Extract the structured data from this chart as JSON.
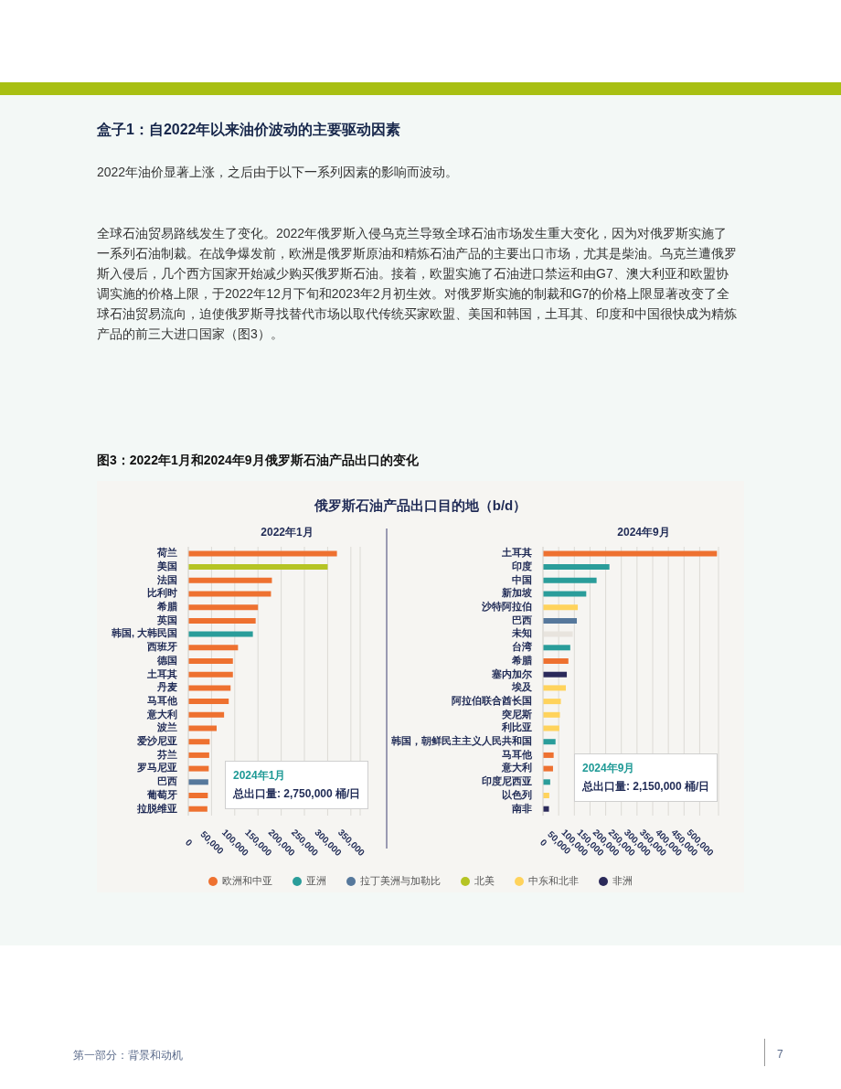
{
  "chart_data": [
    {
      "type": "bar",
      "orientation": "horizontal",
      "stacked": true,
      "title": "俄罗斯石油产品出口目的地（b/d）",
      "subtitle": "2022年1月",
      "categories": [
        "荷兰",
        "美国",
        "法国",
        "比利时",
        "希腊",
        "英国",
        "韩国, 大韩民国",
        "西班牙",
        "德国",
        "土耳其",
        "丹麦",
        "马耳他",
        "意大利",
        "波兰",
        "爱沙尼亚",
        "芬兰",
        "罗马尼亚",
        "巴西",
        "葡萄牙",
        "拉脱维亚"
      ],
      "series": [
        {
          "name": "欧洲和中亚",
          "color": "#ee7130",
          "values": [
            320000,
            null,
            180000,
            178000,
            150000,
            145000,
            null,
            107000,
            96000,
            96000,
            91000,
            87000,
            77000,
            61000,
            46000,
            45000,
            44000,
            null,
            42000,
            41000
          ]
        },
        {
          "name": "亚洲",
          "color": "#2a9d9a",
          "values": [
            null,
            null,
            null,
            null,
            null,
            null,
            139000,
            null,
            null,
            null,
            null,
            null,
            null,
            null,
            null,
            null,
            null,
            null,
            null,
            null
          ]
        },
        {
          "name": "拉丁美洲与加勒比",
          "color": "#56789c",
          "values": [
            null,
            null,
            null,
            null,
            null,
            null,
            null,
            null,
            null,
            null,
            null,
            null,
            null,
            null,
            null,
            null,
            null,
            43000,
            null,
            null
          ]
        },
        {
          "name": "北美",
          "color": "#b5c424",
          "values": [
            null,
            300000,
            null,
            null,
            null,
            null,
            null,
            null,
            null,
            null,
            null,
            null,
            null,
            null,
            null,
            null,
            null,
            null,
            null,
            null
          ]
        }
      ],
      "xlim": [
        0,
        370000
      ],
      "xticks": [
        {
          "value": 0,
          "label": "0"
        },
        {
          "value": 50000,
          "label": "50,000"
        },
        {
          "value": 100000,
          "label": "100,000"
        },
        {
          "value": 150000,
          "label": "150,000"
        },
        {
          "value": 200000,
          "label": "200,000"
        },
        {
          "value": 250000,
          "label": "250,000"
        },
        {
          "value": 300000,
          "label": "300,000"
        },
        {
          "value": 350000,
          "label": "350,000"
        }
      ],
      "grid": "x",
      "legend": "bottom",
      "annotations": [
        "盒子1：自2022年以来油价波动的主要驱动因素",
        "2022年油价显著上涨，之后由于以下一系列因素的影响而波动。",
        "全球石油贸易路线发生了变化。2022年俄罗斯入侵乌克兰导致全球石油市场发生重大变化，因为对俄罗斯实施了一系列石油制裁。在战争爆发前，欧洲是俄罗斯原油和精炼石油产品的主要出口市场，尤其是柴油。乌克兰遭俄罗斯入侵后，几个西方国家开始减少购买俄罗斯石油。接着，欧盟实施了石油进口禁运和由G7、澳大利亚和欧盟协调实施的价格上限，于2022年12月下旬和2023年2月初生效。对俄罗斯实施的制裁和G7的价格上限显著改变了全球石油贸易流向，迫使俄罗斯寻找替代市场以取代传统买家欧盟、美国和韩国，土耳其、印度和中国很快成为精炼产品的前三大进口国家（图3）。",
        "图3：2022年1月和2024年9月俄罗斯石油产品出口的变化",
        "2024年1月",
        "总出口量: 2,750,000 桶/日",
        "第一部分：背景和动机",
        "7"
      ]
    },
    {
      "type": "bar",
      "orientation": "horizontal",
      "stacked": true,
      "subtitle": "2024年9月",
      "categories": [
        "土耳其",
        "印度",
        "中国",
        "新加坡",
        "沙特阿拉伯",
        "巴西",
        "未知",
        "台湾",
        "希腊",
        "塞内加尔",
        "埃及",
        "阿拉伯联合酋长国",
        "突尼斯",
        "利比亚",
        "韩国，朝鲜民主主义人民共和国",
        "马耳他",
        "意大利",
        "印度尼西亚",
        "以色列",
        "南非"
      ],
      "series": [
        {
          "name": "欧洲和中亚",
          "color": "#ee7130",
          "values": [
            555000,
            null,
            null,
            null,
            null,
            null,
            null,
            null,
            81000,
            null,
            null,
            null,
            null,
            null,
            null,
            34000,
            32000,
            null,
            null,
            null
          ]
        },
        {
          "name": "中东和北非",
          "color": "#ffd35c",
          "values": [
            null,
            null,
            null,
            null,
            111000,
            null,
            null,
            null,
            null,
            null,
            73000,
            57000,
            54000,
            52000,
            null,
            null,
            null,
            null,
            20000,
            null
          ]
        },
        {
          "name": "非洲",
          "color": "#2b2a5a",
          "values": [
            null,
            null,
            null,
            null,
            null,
            null,
            null,
            null,
            null,
            76000,
            null,
            null,
            null,
            null,
            null,
            null,
            null,
            null,
            null,
            19000
          ]
        },
        {
          "name": "亚洲",
          "color": "#2a9d9a",
          "values": [
            null,
            212000,
            171000,
            138000,
            null,
            null,
            null,
            87000,
            null,
            null,
            null,
            null,
            null,
            null,
            40000,
            null,
            null,
            23000,
            null,
            null
          ]
        },
        {
          "name": "拉丁美洲与加勒比",
          "color": "#56789c",
          "values": [
            null,
            null,
            null,
            null,
            null,
            108000,
            null,
            null,
            null,
            null,
            null,
            null,
            null,
            null,
            null,
            null,
            null,
            null,
            null,
            null
          ]
        },
        {
          "color": "#e8e4de",
          "values": [
            null,
            null,
            null,
            null,
            null,
            null,
            95000,
            null,
            null,
            null,
            null,
            null,
            null,
            null,
            null,
            null,
            null,
            null,
            null,
            null
          ]
        }
      ],
      "xlim": [
        0,
        560000
      ],
      "xticks": [
        {
          "value": 0,
          "label": "0"
        },
        {
          "value": 50000,
          "label": "50,000"
        },
        {
          "value": 100000,
          "label": "100,000"
        },
        {
          "value": 150000,
          "label": "150,000"
        },
        {
          "value": 200000,
          "label": "200,000"
        },
        {
          "value": 250000,
          "label": "250,000"
        },
        {
          "value": 300000,
          "label": "300,000"
        },
        {
          "value": 350000,
          "label": "350,000"
        },
        {
          "value": 400000,
          "label": "400,000"
        },
        {
          "value": 450000,
          "label": "450,000"
        },
        {
          "value": 500000,
          "label": "500,000"
        }
      ],
      "grid": "x",
      "legend": "bottom",
      "annotations": [
        "2024年9月",
        "总出口量: 2,150,000 桶/日"
      ]
    }
  ]
}
